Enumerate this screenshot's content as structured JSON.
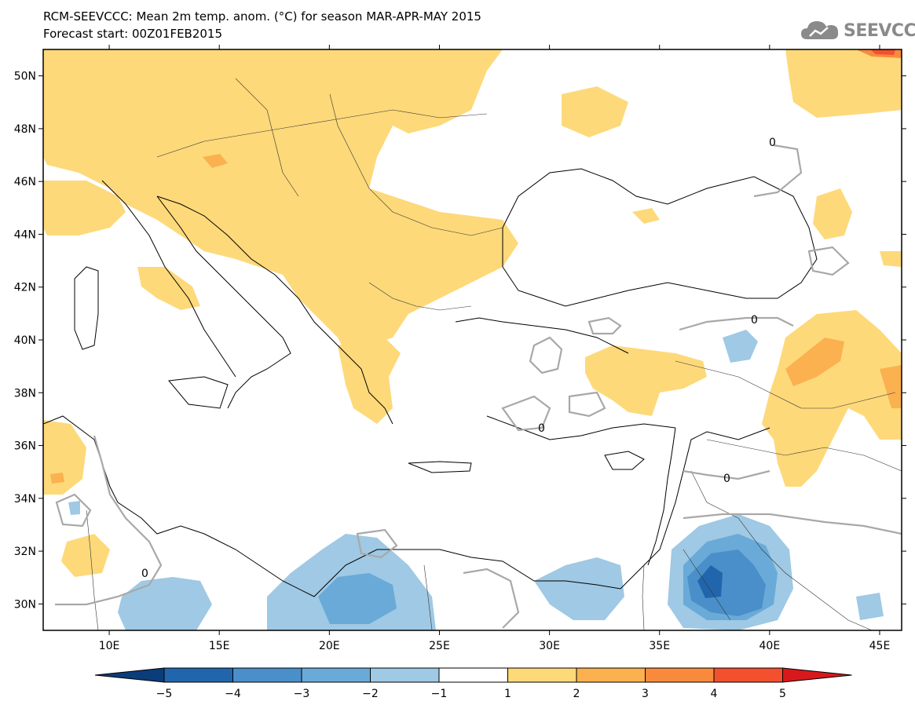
{
  "header": {
    "title_line1": "RCM-SEEVCCC: Mean 2m temp. anom. (°C) for season MAR-APR-MAY 2015",
    "title_line2": "Forecast start: 00Z01FEB2015",
    "logo_text": "SEEVCCC",
    "logo_icon": "cloud-icon"
  },
  "map": {
    "lon_range": [
      7,
      46
    ],
    "lat_range": [
      29,
      51
    ],
    "lat_ticks": [
      {
        "value": 50,
        "label": "50N"
      },
      {
        "value": 48,
        "label": "48N"
      },
      {
        "value": 46,
        "label": "46N"
      },
      {
        "value": 44,
        "label": "44N"
      },
      {
        "value": 42,
        "label": "42N"
      },
      {
        "value": 40,
        "label": "40N"
      },
      {
        "value": 38,
        "label": "38N"
      },
      {
        "value": 36,
        "label": "36N"
      },
      {
        "value": 34,
        "label": "34N"
      },
      {
        "value": 32,
        "label": "32N"
      },
      {
        "value": 30,
        "label": "30N"
      }
    ],
    "lon_ticks": [
      {
        "value": 10,
        "label": "10E"
      },
      {
        "value": 15,
        "label": "15E"
      },
      {
        "value": 20,
        "label": "20E"
      },
      {
        "value": 25,
        "label": "25E"
      },
      {
        "value": 30,
        "label": "30E"
      },
      {
        "value": 35,
        "label": "35E"
      },
      {
        "value": 40,
        "label": "40E"
      },
      {
        "value": 45,
        "label": "45E"
      }
    ],
    "zero_contour_label": "0"
  },
  "colorbar": {
    "labels": [
      "−5",
      "−4",
      "−3",
      "−2",
      "−1",
      "1",
      "2",
      "3",
      "4",
      "5"
    ],
    "colors": {
      "below_-5": "#0a3d7a",
      "-5_-4": "#2166ac",
      "-4_-3": "#4a8fc9",
      "-3_-2": "#6aaad8",
      "-2_-1": "#9fc9e4",
      "-1_1": "#ffffff",
      "1_2": "#fdd97a",
      "2_3": "#fbb14f",
      "3_4": "#f98a3c",
      "4_5": "#f2502e",
      "above_5": "#d7191c"
    }
  }
}
